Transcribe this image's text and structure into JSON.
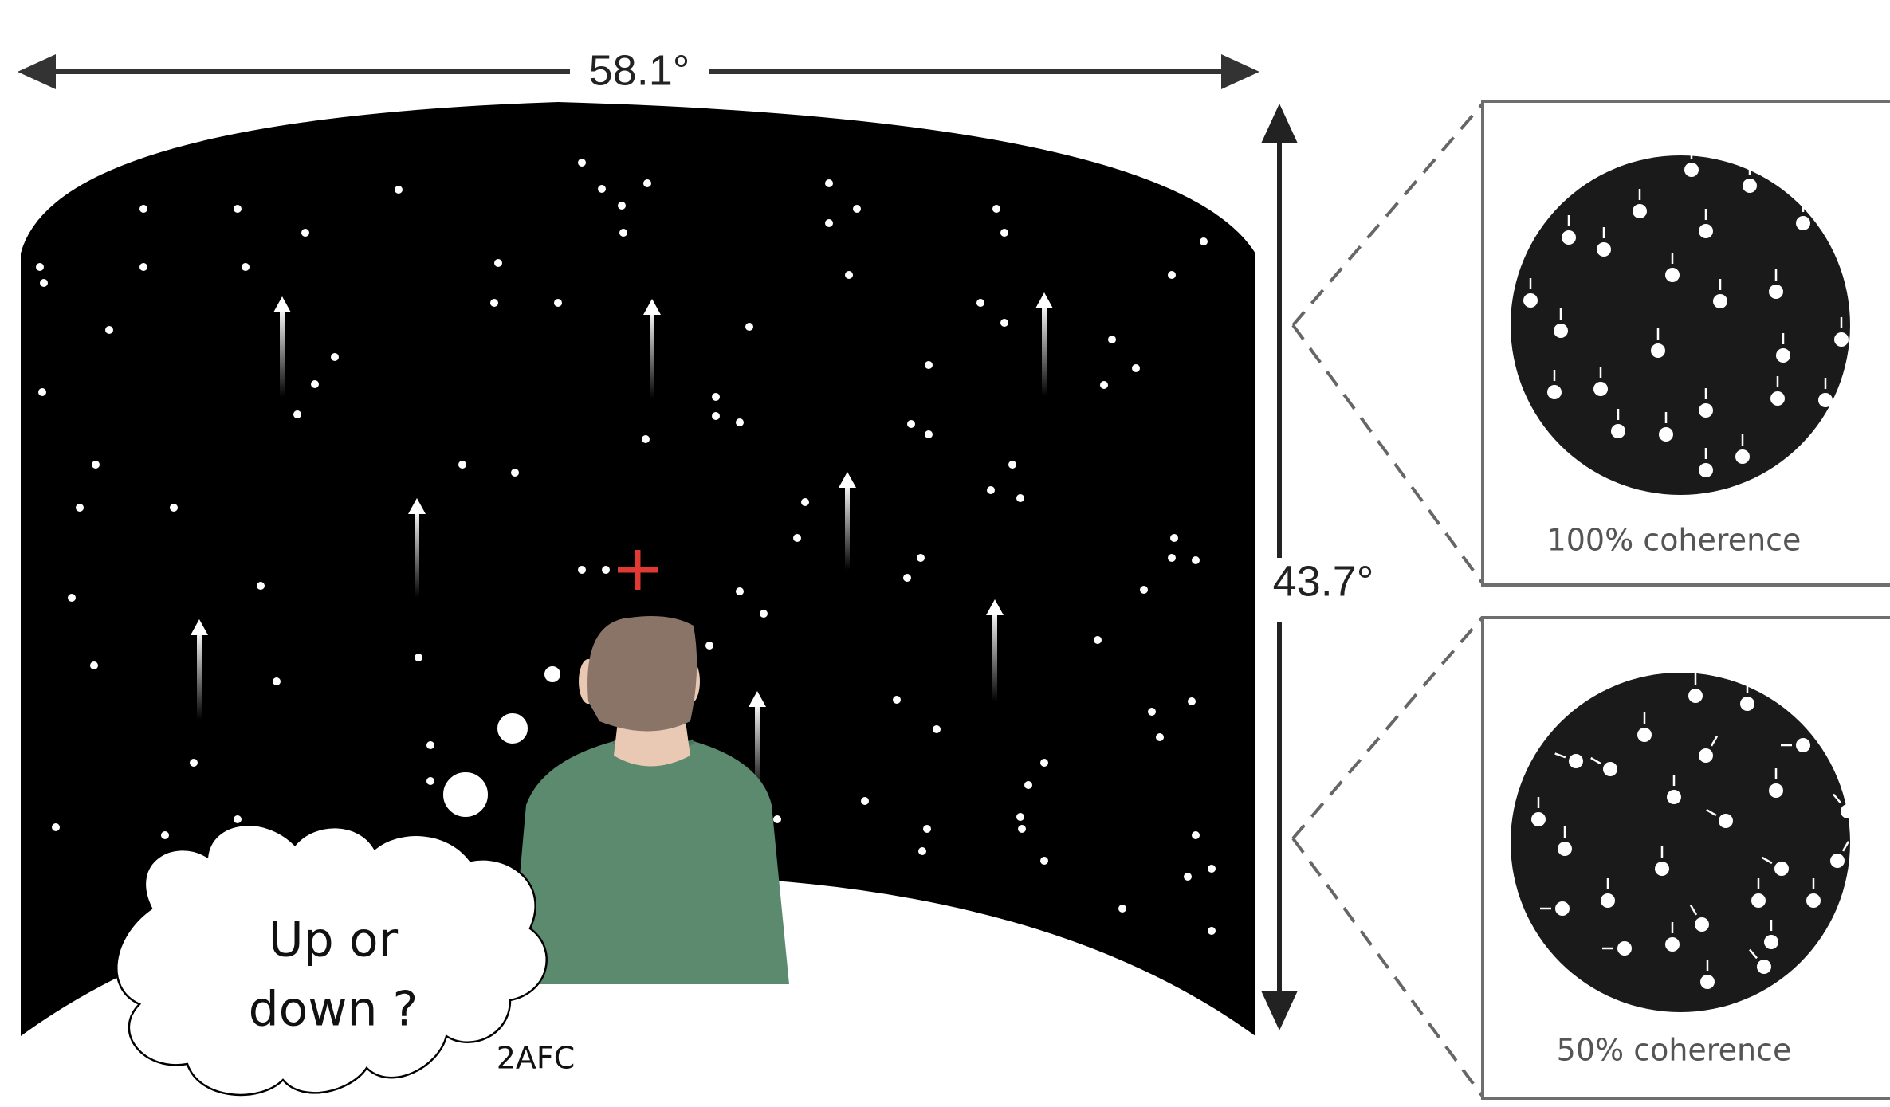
{
  "labels": {
    "width_angle": "58.1°",
    "height_angle": "43.7°",
    "thought": {
      "line1": "Up or",
      "line2": "down ?"
    },
    "task": "2AFC"
  },
  "insets": [
    {
      "caption": "100% coherence"
    },
    {
      "caption": "50% coherence"
    }
  ],
  "colors": {
    "screen": "#000000",
    "fixation": "#e03a33",
    "arrows": "#444444",
    "shirt": "#5b8a6e",
    "hair": "#8a7468",
    "skin": "#e9c9b3",
    "frame": "#6e6e6e",
    "inset_disc": "#1a1a1a"
  },
  "icons": [
    "fixation-cross-icon",
    "observer-figure",
    "thought-bubble-icon"
  ]
}
